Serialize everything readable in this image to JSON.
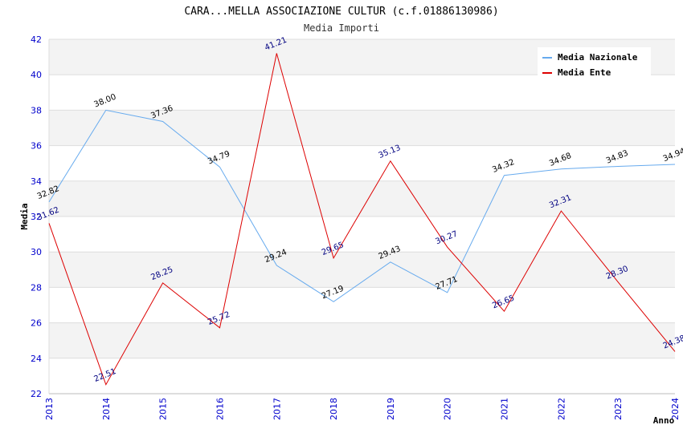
{
  "chart_data": {
    "type": "line",
    "title": "CARA...MELLA ASSOCIAZIONE CULTUR (c.f.01886130986)",
    "subtitle": "Media Importi",
    "xlabel": "Anno",
    "ylabel": "Media",
    "ylim": [
      22,
      42
    ],
    "yticks": [
      "22",
      "24",
      "26",
      "28",
      "30",
      "32",
      "34",
      "36",
      "38",
      "40",
      "42"
    ],
    "categories": [
      "2013",
      "2014",
      "2015",
      "2016",
      "2017",
      "2018",
      "2019",
      "2020",
      "2021",
      "2022",
      "2023",
      "2024"
    ],
    "grid": true,
    "legend_position": "top-right",
    "series": [
      {
        "name": "Media Nazionale",
        "color": "#66aaee",
        "label_color": "#000000",
        "values": [
          32.82,
          38.0,
          37.36,
          34.79,
          29.24,
          27.19,
          29.43,
          27.71,
          34.32,
          34.68,
          34.83,
          34.94
        ],
        "labels": [
          "32.82",
          "38.00",
          "37.36",
          "34.79",
          "29.24",
          "27.19",
          "29.43",
          "27.71",
          "34.32",
          "34.68",
          "34.83",
          "34.94"
        ]
      },
      {
        "name": "Media Ente",
        "color": "#dd0000",
        "label_color": "#000080",
        "values": [
          31.62,
          22.51,
          28.25,
          25.72,
          41.21,
          29.65,
          35.13,
          30.27,
          26.65,
          32.31,
          28.3,
          24.38
        ],
        "labels": [
          "31.62",
          "22.51",
          "28.25",
          "25.72",
          "41.21",
          "29.65",
          "35.13",
          "30.27",
          "26.65",
          "32.31",
          "28.30",
          "24.38"
        ]
      }
    ]
  }
}
